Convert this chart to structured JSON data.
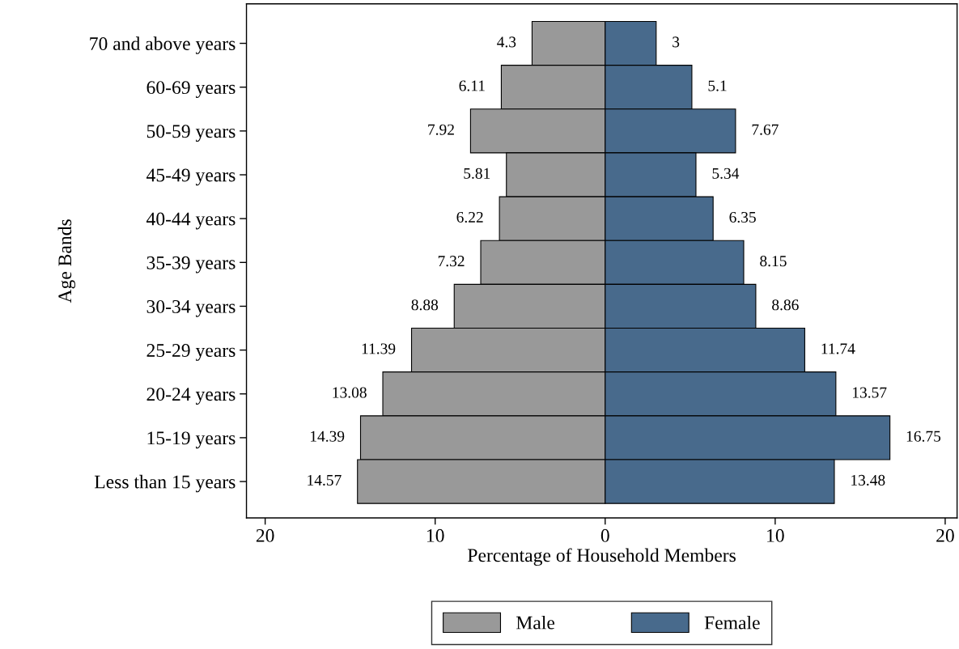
{
  "chart_data": {
    "type": "bar",
    "orientation": "horizontal",
    "ylabel": "Age Bands",
    "xlabel": "Percentage of Household Members",
    "categories": [
      "70 and above years",
      "60-69 years",
      "50-59 years",
      "45-49 years",
      "40-44 years",
      "35-39 years",
      "30-34 years",
      "25-29 years",
      "20-24 years",
      "15-19 years",
      "Less than 15 years"
    ],
    "series": [
      {
        "name": "Male",
        "color": "#999999",
        "values": [
          4.3,
          6.11,
          7.92,
          5.81,
          6.22,
          7.32,
          8.88,
          11.39,
          13.08,
          14.39,
          14.57
        ],
        "base": [
          -4.3,
          -6.11,
          -7.92,
          -5.81,
          -6.22,
          -7.32,
          -8.88,
          -11.39,
          -13.08,
          -14.39,
          -14.57
        ],
        "value_labels": [
          "4.3",
          "6.11",
          "7.92",
          "5.81",
          "6.22",
          "7.32",
          "8.88",
          "11.39",
          "13.08",
          "14.39",
          "14.57"
        ]
      },
      {
        "name": "Female",
        "color": "#486a8c",
        "values": [
          3,
          5.1,
          7.67,
          5.34,
          6.35,
          8.15,
          8.86,
          11.74,
          13.57,
          16.75,
          13.48
        ],
        "value_labels": [
          "3",
          "5.1",
          "7.67",
          "5.34",
          "6.35",
          "8.15",
          "8.86",
          "11.74",
          "13.57",
          "16.75",
          "13.48"
        ]
      }
    ],
    "xlim": [
      -21.1,
      20.7
    ],
    "xticks": [
      {
        "value": -20,
        "label": "20"
      },
      {
        "value": -10,
        "label": "10"
      },
      0,
      10,
      20
    ],
    "grid": false,
    "legend": "bottom"
  }
}
